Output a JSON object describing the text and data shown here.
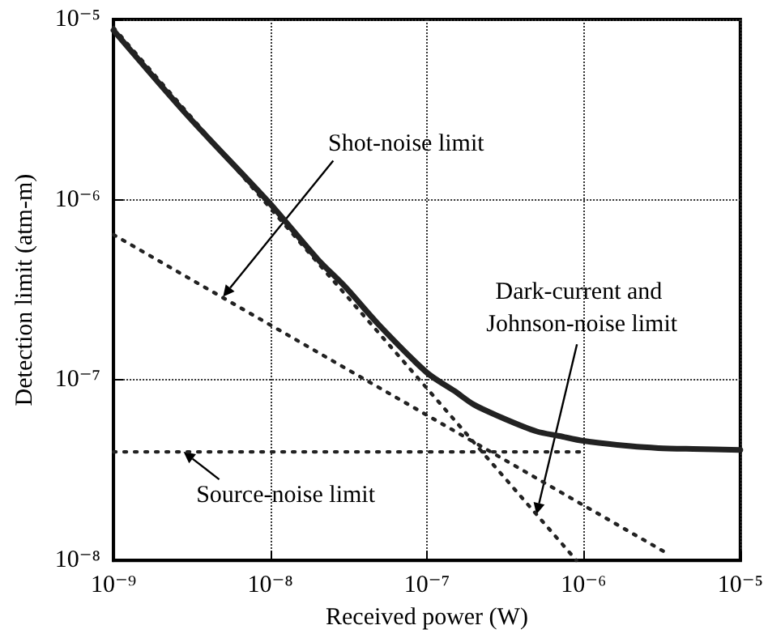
{
  "chart_data": {
    "type": "line",
    "xlabel": "Received power (W)",
    "ylabel": "Detection limit (atm-m)",
    "log": "xy",
    "grid": true,
    "xlim": [
      1e-09,
      1e-05
    ],
    "ylim": [
      1e-08,
      1e-05
    ],
    "xticks": [
      {
        "value": 1e-09,
        "label": "10⁻⁹"
      },
      {
        "value": 1e-08,
        "label": "10⁻⁸"
      },
      {
        "value": 1e-07,
        "label": "10⁻⁷"
      },
      {
        "value": 1e-06,
        "label": "10⁻⁶"
      },
      {
        "value": 1e-05,
        "label": "10⁻⁵"
      }
    ],
    "yticks": [
      {
        "value": 1e-08,
        "label": "10⁻⁸"
      },
      {
        "value": 1e-07,
        "label": "10⁻⁷"
      },
      {
        "value": 1e-06,
        "label": "10⁻⁶"
      },
      {
        "value": 1e-05,
        "label": "10⁻⁵"
      }
    ],
    "series": [
      {
        "color": "#222222",
        "line_style": "solid",
        "x": [
          1e-09,
          3e-09,
          1e-08,
          2e-08,
          3e-08,
          5e-08,
          1e-07,
          1.5e-07,
          2e-07,
          3e-07,
          5e-07,
          7e-07,
          1e-06,
          2e-06,
          3e-06,
          5e-06,
          1e-05
        ],
        "values": [
          8.7e-06,
          2.9e-06,
          9.5e-07,
          4.7e-07,
          3.3e-07,
          2e-07,
          1.1e-07,
          8.7e-08,
          7.3e-08,
          6.2e-08,
          5.2e-08,
          4.9e-08,
          4.6e-08,
          4.3e-08,
          4.2e-08,
          4.15e-08,
          4.1e-08
        ]
      },
      {
        "color": "#222222",
        "line_style": "dotted",
        "x": [
          1e-09,
          3.5e-06
        ],
        "values": [
          6.4e-07,
          1.08e-08
        ]
      },
      {
        "color": "#222222",
        "line_style": "dotted",
        "x": [
          1e-09,
          9e-07
        ],
        "values": [
          9e-06,
          1e-08
        ]
      },
      {
        "color": "#222222",
        "line_style": "dotted",
        "x": [
          1e-09,
          1e-06
        ],
        "values": [
          4e-08,
          4e-08
        ]
      }
    ],
    "annotations": [
      {
        "text": "Shot-noise limit",
        "x": 5e-09,
        "y": 2.9e-07
      },
      {
        "text": "Dark-current and Johnson-noise limit",
        "x": 5e-07,
        "y": 1.8e-08
      },
      {
        "text": "Source-noise limit",
        "x": 2.8e-09,
        "y": 4e-08
      }
    ]
  }
}
